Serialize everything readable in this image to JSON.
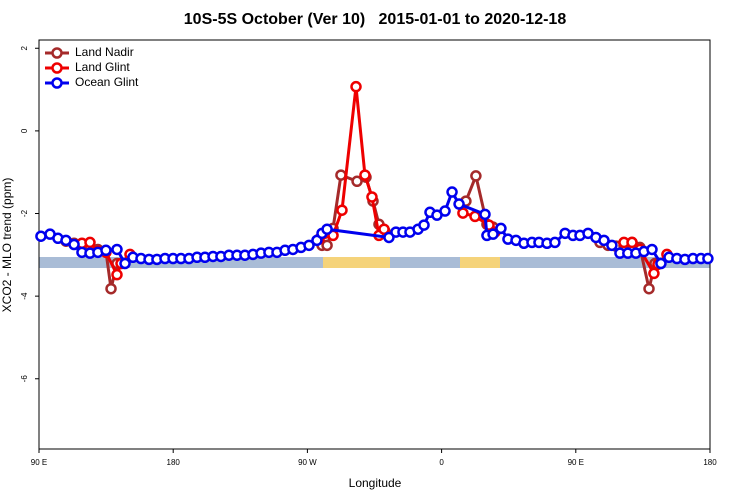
{
  "chart_data": {
    "type": "line",
    "title": "10S-5S October (Ver 10)   2015-01-01 to 2020-12-18",
    "x_label": "Longitude",
    "y_label": "XCO2 - MLO trend (ppm)",
    "xlim": [
      90,
      540
    ],
    "ylim": [
      -7.7,
      2.2
    ],
    "xticks": [
      {
        "value": 90,
        "label": "90 E"
      },
      180,
      {
        "value": 270,
        "label": "90 W"
      },
      {
        "value": 360,
        "label": "0"
      },
      {
        "value": 450,
        "label": "90 E"
      },
      {
        "value": 540,
        "label": "180"
      }
    ],
    "yticks": [
      2,
      0,
      -2,
      -4,
      -6
    ],
    "legend_position": "upper left",
    "series": [
      {
        "name": "Land Nadir",
        "color": "#a52a2a",
        "x": [
          108.1,
          113.5,
          118.8,
          124.2,
          129.5,
          134.9,
          138.3,
          142.3,
          null,
          279.8,
          283.2,
          287.2,
          292.5,
          303.3,
          309.3,
          314,
          318,
          322,
          null,
          376.3,
          383,
          390.4,
          394.5,
          null,
          466.2,
          471.6,
          477,
          482.3,
          487.7,
          493,
          499.1,
          503.1
        ],
        "values": [
          -2.67,
          -2.72,
          -2.84,
          -2.79,
          -2.87,
          -2.92,
          -3.82,
          -3.21,
          null,
          -2.77,
          -2.77,
          -2.36,
          -1.07,
          -1.22,
          -1.12,
          -1.7,
          -2.26,
          -2.43,
          null,
          -1.7,
          -1.09,
          -2.26,
          -2.33,
          null,
          -2.7,
          -2.77,
          -2.79,
          -2.77,
          -2.7,
          -2.82,
          -3.82,
          -3.21
        ]
      },
      {
        "name": "Land Glint",
        "color": "#ee0000",
        "x": [
          118.8,
          124.2,
          129.5,
          134.9,
          142.3,
          145,
          151,
          null,
          277.8,
          287.2,
          293.2,
          302.6,
          308.6,
          313.3,
          318,
          321.4,
          null,
          374.3,
          382.4,
          391.8,
          395.8,
          null,
          482.3,
          487.7,
          493,
          502.4,
          505.1,
          511.1
        ],
        "values": [
          -2.72,
          -2.7,
          -2.92,
          -2.94,
          -3.48,
          -3.21,
          -2.99,
          null,
          -2.62,
          -2.53,
          -1.92,
          1.07,
          -1.07,
          -1.6,
          -2.53,
          -2.38,
          null,
          -1.99,
          -2.07,
          -2.28,
          -2.45,
          null,
          -2.7,
          -2.7,
          -2.87,
          -3.45,
          -3.23,
          -2.99
        ]
      },
      {
        "name": "Ocean Glint",
        "color": "#0000ee",
        "x": [
          91.3,
          97.4,
          102.7,
          108.1,
          113.5,
          118.8,
          124.2,
          129.5,
          134.9,
          142.3,
          147.7,
          153,
          158.4,
          163.8,
          169.1,
          174.5,
          179.9,
          185.2,
          190.6,
          196,
          201.3,
          206.7,
          212,
          217.4,
          222.8,
          228.1,
          233.5,
          238.9,
          244.2,
          249.6,
          255,
          260.3,
          265.7,
          271.1,
          276.4,
          279.8,
          283.2,
          324.7,
          329.4,
          334.1,
          338.8,
          344.2,
          348.2,
          352.2,
          356.9,
          362.3,
          367,
          371.7,
          389.1,
          390.4,
          394.5,
          399.8,
          404.5,
          409.9,
          415.2,
          420.6,
          425.3,
          430.7,
          436,
          442.8,
          448.1,
          452.8,
          458.2,
          463.5,
          468.9,
          474.2,
          479.6,
          484.9,
          490.3,
          495.7,
          501.1,
          507.1,
          512.5,
          517.8,
          523.2,
          528.6,
          533.9,
          538.6
        ],
        "values": [
          -2.55,
          -2.5,
          -2.6,
          -2.65,
          -2.75,
          -2.94,
          -2.96,
          -2.94,
          -2.89,
          -2.87,
          -3.21,
          -3.06,
          -3.09,
          -3.11,
          -3.11,
          -3.09,
          -3.09,
          -3.09,
          -3.09,
          -3.06,
          -3.06,
          -3.04,
          -3.04,
          -3.01,
          -3.01,
          -3.01,
          -2.99,
          -2.96,
          -2.94,
          -2.94,
          -2.89,
          -2.87,
          -2.82,
          -2.77,
          -2.65,
          -2.48,
          -2.38,
          -2.58,
          -2.45,
          -2.45,
          -2.45,
          -2.38,
          -2.28,
          -1.97,
          -2.04,
          -1.94,
          -1.48,
          -1.77,
          -2.02,
          -2.53,
          -2.5,
          -2.36,
          -2.62,
          -2.65,
          -2.72,
          -2.7,
          -2.7,
          -2.72,
          -2.7,
          -2.48,
          -2.53,
          -2.53,
          -2.48,
          -2.58,
          -2.65,
          -2.77,
          -2.96,
          -2.96,
          -2.96,
          -2.92,
          -2.87,
          -3.21,
          -3.06,
          -3.09,
          -3.11,
          -3.09,
          -3.09,
          -3.09
        ]
      }
    ]
  }
}
